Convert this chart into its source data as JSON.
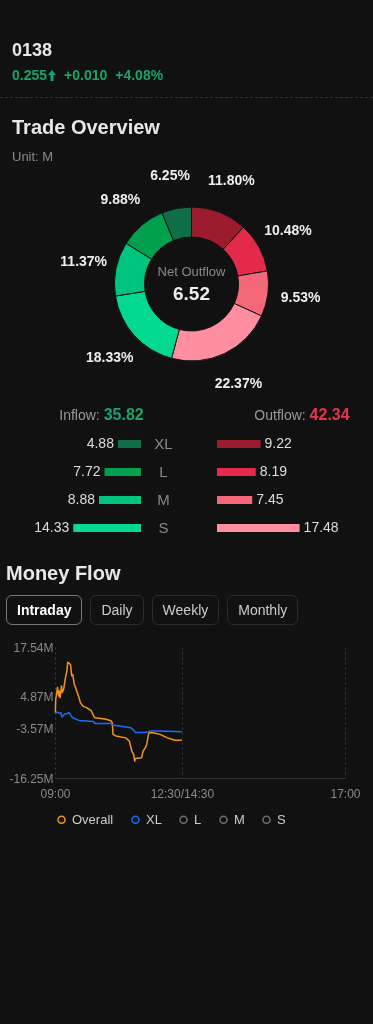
{
  "chart_data": [
    {
      "type": "other",
      "title": "0138",
      "annotations": [
        "0.255",
        "+0.010",
        "+4.08%"
      ]
    },
    {
      "type": "donut",
      "title": "Trade Overview",
      "subtitle": "Unit: M",
      "categories": [
        null,
        null,
        null,
        null,
        null,
        null,
        null,
        null
      ],
      "values": [
        11.8,
        10.48,
        9.53,
        22.37,
        18.33,
        11.37,
        9.88,
        6.25
      ],
      "colors": [
        "#9b1c2c",
        "#e5294a",
        "#f4687a",
        "#ff8fa0",
        "#00d98f",
        "#00c47e",
        "#00a04e",
        "#0e6e48"
      ],
      "value_labels": [
        "11.80%",
        "10.48%",
        "9.53%",
        "22.37%",
        "18.33%",
        "11.37%",
        "9.88%",
        "6.25%"
      ],
      "annotations": [
        "Net Outflow",
        "6.52"
      ]
    },
    {
      "type": "bar",
      "orientation": "horizontal",
      "title": "Inflow:",
      "annotations": [
        "35.82"
      ],
      "categories": [
        "XL",
        "L",
        "M",
        "S"
      ],
      "data_labels": true,
      "tick_labels": "y",
      "values": [
        4.88,
        7.72,
        8.88,
        14.33
      ],
      "colors": [
        "#0e6e48",
        "#00a04e",
        "#00c47e",
        "#00d98f"
      ]
    },
    {
      "type": "bar",
      "orientation": "horizontal",
      "title": "Outflow:",
      "annotations": [
        "42.34"
      ],
      "categories": [
        null,
        null,
        null,
        null
      ],
      "data_labels": true,
      "tick_labels": false,
      "values": [
        9.22,
        8.19,
        7.45,
        17.48
      ],
      "colors": [
        "#9b1c2c",
        "#e5294a",
        "#f4687a",
        "#ff8fa0"
      ]
    },
    {
      "type": "line",
      "title": "Money Flow",
      "annotations": [
        "Intraday",
        "Daily",
        "Weekly",
        "Monthly"
      ],
      "xlim": [
        9,
        17
      ],
      "xticks": [
        {
          "value": 9,
          "label": "09:00"
        },
        {
          "value": 12.5,
          "label": "12:30/14:30"
        },
        {
          "value": 17,
          "label": "17:00"
        }
      ],
      "ylim": [
        -16.25,
        17.54
      ],
      "yticks": [
        {
          "value": -16.25,
          "label": "-16.25M"
        },
        {
          "value": -3.57,
          "label": "-3.57M"
        },
        {
          "value": 4.87,
          "label": "4.87M"
        },
        {
          "value": 17.54,
          "label": "17.54M"
        }
      ],
      "grid": "x",
      "legend": "bottom",
      "series": [
        {
          "name": "Overall",
          "color": "#f5941f",
          "x": [
            9.01,
            9.02,
            9.05,
            9.07,
            9.1,
            9.12,
            9.14,
            9.18,
            9.2,
            9.24,
            9.29,
            9.33,
            9.35,
            9.39,
            9.43,
            9.46,
            9.49,
            9.53,
            9.6,
            9.66,
            9.7,
            9.77,
            9.87,
            10.0,
            10.07,
            10.1,
            10.27,
            10.41,
            10.54,
            10.58,
            10.6,
            10.68,
            10.95,
            11.05,
            11.12,
            11.17,
            11.2,
            11.22,
            11.39,
            11.43,
            11.49,
            11.53,
            11.57,
            11.59,
            11.7,
            11.9,
            12.1,
            12.31,
            12.5
          ],
          "values": [
            0.6,
            4.1,
            5.8,
            7.1,
            4.9,
            6.2,
            4.5,
            7.5,
            5.8,
            6.7,
            9.7,
            11.4,
            13.6,
            13.3,
            13.0,
            10.1,
            10.4,
            8.0,
            6.2,
            4.5,
            3.2,
            2.3,
            1.9,
            1.1,
            -0.3,
            -0.7,
            -0.9,
            -1.1,
            -1.5,
            -2.0,
            -5.0,
            -5.4,
            -5.9,
            -6.7,
            -9.3,
            -10.2,
            -11.9,
            -11.2,
            -11.0,
            -9.3,
            -8.5,
            -7.6,
            -5.4,
            -4.6,
            -4.6,
            -5.0,
            -5.9,
            -6.5,
            -6.5
          ]
        },
        {
          "name": "XL",
          "color": "#1a6ef5",
          "x": [
            9.01,
            9.05,
            9.12,
            9.16,
            9.19,
            9.26,
            9.33,
            9.39,
            9.45,
            9.49,
            9.66,
            10.07,
            10.1,
            10.54,
            10.58,
            11.09,
            11.19,
            11.22,
            11.43,
            11.56,
            11.63,
            11.9,
            12.5
          ],
          "values": [
            0.4,
            0.8,
            0.4,
            0.6,
            -0.5,
            0.2,
            0.4,
            0.6,
            -0.3,
            -0.7,
            -1.4,
            -1.7,
            -2.2,
            -2.2,
            -2.6,
            -3.3,
            -4.1,
            -4.5,
            -4.5,
            -4.4,
            -4.1,
            -4.1,
            -4.3
          ]
        },
        {
          "name": "L",
          "color": "#6e6e6e"
        },
        {
          "name": "M",
          "color": "#6e6e6e"
        },
        {
          "name": "S",
          "color": "#6e6e6e"
        }
      ]
    }
  ]
}
